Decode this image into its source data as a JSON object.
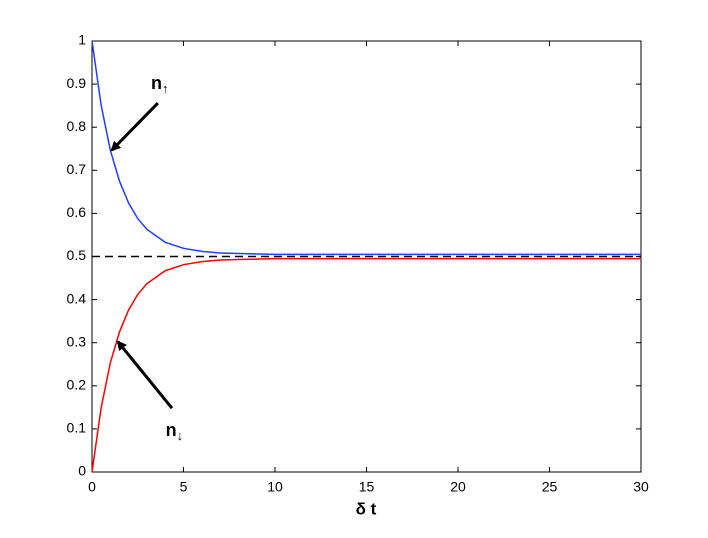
{
  "chart_data": {
    "type": "line",
    "xlabel": "δ t",
    "x": [
      0,
      0.5,
      1,
      1.5,
      2,
      2.5,
      3,
      4,
      5,
      6,
      7,
      8,
      10,
      12,
      15,
      20,
      25,
      30
    ],
    "series": [
      {
        "color": "#1f3fff",
        "values": [
          1.0,
          0.851,
          0.747,
          0.675,
          0.624,
          0.588,
          0.563,
          0.533,
          0.519,
          0.512,
          0.508,
          0.507,
          0.505,
          0.505,
          0.505,
          0.505,
          0.505,
          0.505
        ]
      },
      {
        "color": "#ff0000",
        "values": [
          0,
          0.149,
          0.253,
          0.325,
          0.376,
          0.412,
          0.437,
          0.467,
          0.481,
          0.488,
          0.492,
          0.493,
          0.495,
          0.495,
          0.495,
          0.495,
          0.495,
          0.495
        ]
      }
    ],
    "hlines": [
      {
        "y": 0.5,
        "color": "#000000",
        "dashed": true
      }
    ],
    "annotations": [
      {
        "text": "n",
        "sub": "↑",
        "xy": [
          1.09,
          0.747
        ],
        "xytext": [
          3.6,
          0.856
        ],
        "textpos": [
          3.7,
          0.9
        ]
      },
      {
        "text": "n",
        "sub": "↓",
        "xy": [
          1.42,
          0.302
        ],
        "xytext": [
          4.37,
          0.148
        ],
        "textpos": [
          4.5,
          0.095
        ]
      }
    ],
    "xlim": [
      0,
      30
    ],
    "xticks": [
      0,
      5,
      10,
      15,
      20,
      25,
      30
    ],
    "ylim": [
      0,
      1
    ],
    "yticks": [
      0,
      0.1,
      0.2,
      0.3,
      0.4,
      0.5,
      0.6,
      0.7,
      0.8,
      0.9,
      1
    ]
  }
}
